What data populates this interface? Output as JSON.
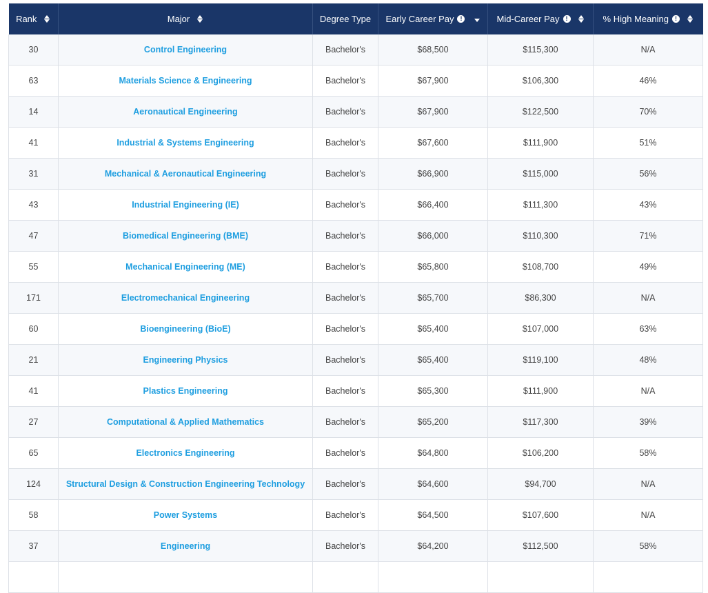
{
  "colors": {
    "header_bg": "#1a3668",
    "header_text": "#ffffff",
    "link": "#1e9ee0",
    "row_alt": "#f6f8fb",
    "border": "#dde1e7"
  },
  "table": {
    "headers": {
      "rank": "Rank",
      "major": "Major",
      "degree_type": "Degree Type",
      "early_pay": "Early Career Pay",
      "mid_pay": "Mid-Career Pay",
      "high_meaning": "% High Meaning"
    },
    "header_icons": {
      "info": "info-icon",
      "sort": "sort-icon",
      "sort_desc": "sort-descending-icon"
    },
    "rows": [
      {
        "rank": "30",
        "major": "Control Engineering",
        "degree": "Bachelor's",
        "early": "$68,500",
        "mid": "$115,300",
        "meaning": "N/A"
      },
      {
        "rank": "63",
        "major": "Materials Science & Engineering",
        "degree": "Bachelor's",
        "early": "$67,900",
        "mid": "$106,300",
        "meaning": "46%"
      },
      {
        "rank": "14",
        "major": "Aeronautical Engineering",
        "degree": "Bachelor's",
        "early": "$67,900",
        "mid": "$122,500",
        "meaning": "70%"
      },
      {
        "rank": "41",
        "major": "Industrial & Systems Engineering",
        "degree": "Bachelor's",
        "early": "$67,600",
        "mid": "$111,900",
        "meaning": "51%"
      },
      {
        "rank": "31",
        "major": "Mechanical & Aeronautical Engineering",
        "degree": "Bachelor's",
        "early": "$66,900",
        "mid": "$115,000",
        "meaning": "56%"
      },
      {
        "rank": "43",
        "major": "Industrial Engineering (IE)",
        "degree": "Bachelor's",
        "early": "$66,400",
        "mid": "$111,300",
        "meaning": "43%"
      },
      {
        "rank": "47",
        "major": "Biomedical Engineering (BME)",
        "degree": "Bachelor's",
        "early": "$66,000",
        "mid": "$110,300",
        "meaning": "71%"
      },
      {
        "rank": "55",
        "major": "Mechanical Engineering (ME)",
        "degree": "Bachelor's",
        "early": "$65,800",
        "mid": "$108,700",
        "meaning": "49%"
      },
      {
        "rank": "171",
        "major": "Electromechanical Engineering",
        "degree": "Bachelor's",
        "early": "$65,700",
        "mid": "$86,300",
        "meaning": "N/A"
      },
      {
        "rank": "60",
        "major": "Bioengineering (BioE)",
        "degree": "Bachelor's",
        "early": "$65,400",
        "mid": "$107,000",
        "meaning": "63%"
      },
      {
        "rank": "21",
        "major": "Engineering Physics",
        "degree": "Bachelor's",
        "early": "$65,400",
        "mid": "$119,100",
        "meaning": "48%"
      },
      {
        "rank": "41",
        "major": "Plastics Engineering",
        "degree": "Bachelor's",
        "early": "$65,300",
        "mid": "$111,900",
        "meaning": "N/A"
      },
      {
        "rank": "27",
        "major": "Computational & Applied Mathematics",
        "degree": "Bachelor's",
        "early": "$65,200",
        "mid": "$117,300",
        "meaning": "39%"
      },
      {
        "rank": "65",
        "major": "Electronics Engineering",
        "degree": "Bachelor's",
        "early": "$64,800",
        "mid": "$106,200",
        "meaning": "58%"
      },
      {
        "rank": "124",
        "major": "Structural Design & Construction Engineering Technology",
        "degree": "Bachelor's",
        "early": "$64,600",
        "mid": "$94,700",
        "meaning": "N/A"
      },
      {
        "rank": "58",
        "major": "Power Systems",
        "degree": "Bachelor's",
        "early": "$64,500",
        "mid": "$107,600",
        "meaning": "N/A"
      },
      {
        "rank": "37",
        "major": "Engineering",
        "degree": "Bachelor's",
        "early": "$64,200",
        "mid": "$112,500",
        "meaning": "58%"
      },
      {
        "rank": "",
        "major": "",
        "degree": "",
        "early": "",
        "mid": "",
        "meaning": ""
      }
    ]
  }
}
